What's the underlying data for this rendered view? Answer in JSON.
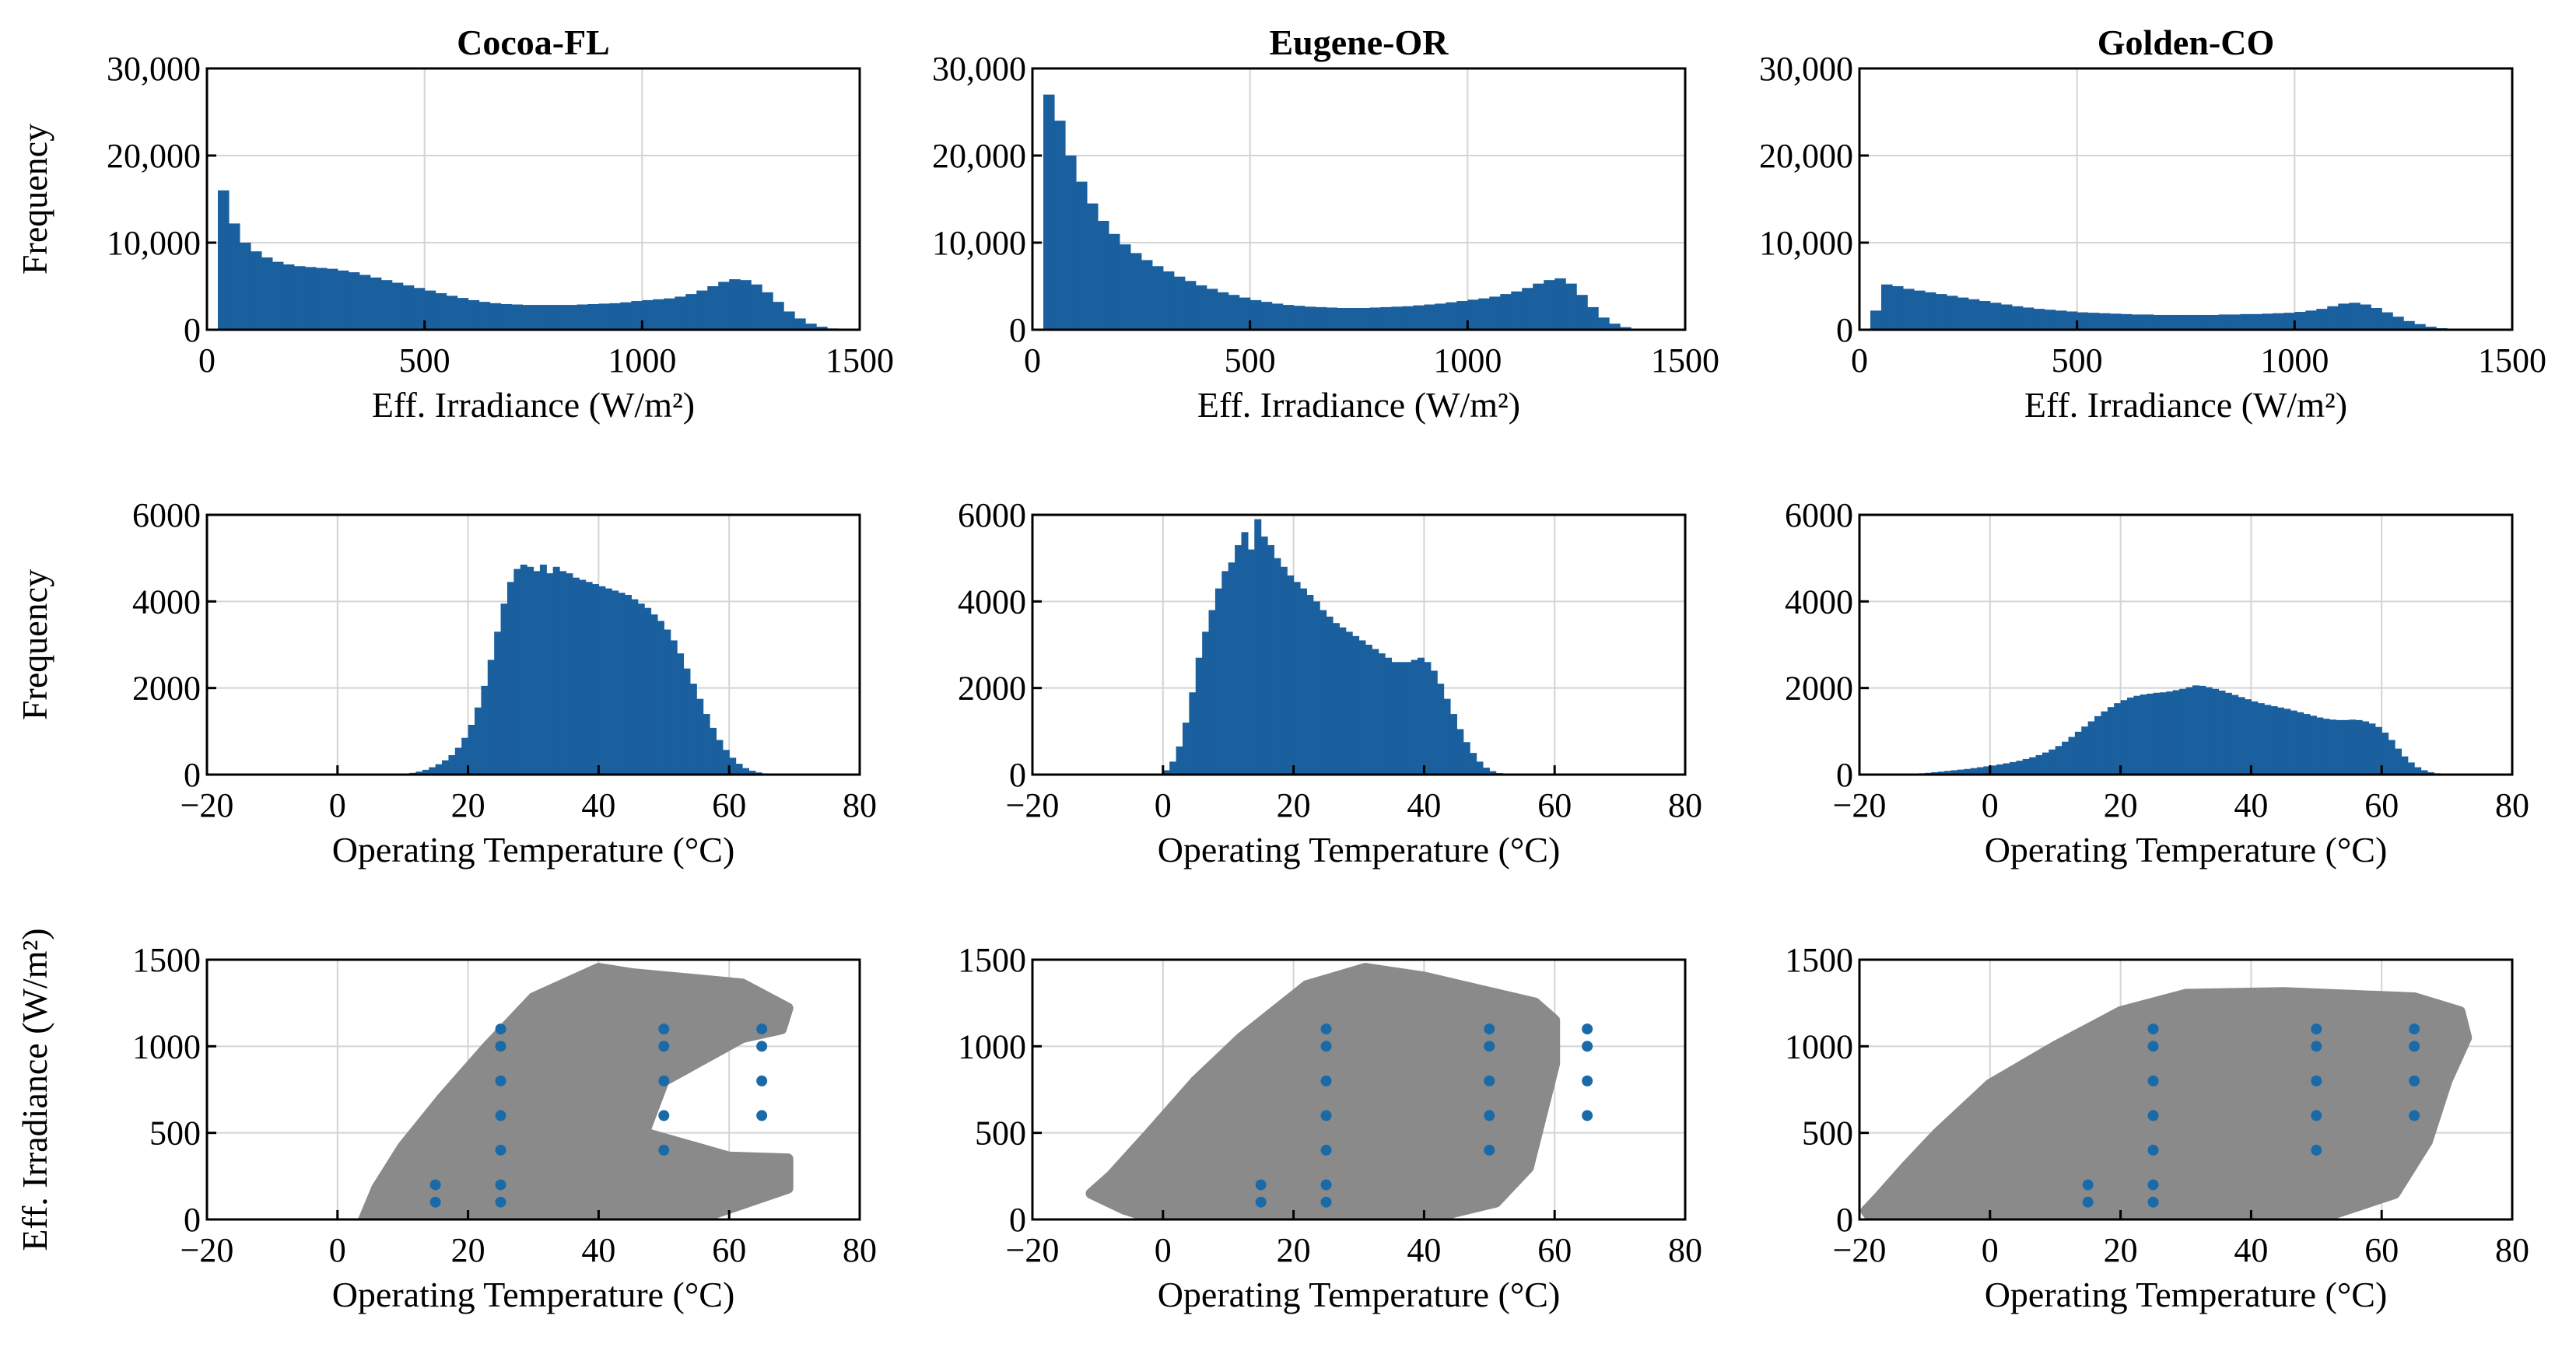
{
  "colors": {
    "bar": "#1a5f9e",
    "scatter": "#8a8a8a",
    "marker": "#1a6aa8",
    "grid": "#d4d4d4"
  },
  "chart_data": [
    {
      "type": "bar",
      "id": "cocoa-irr",
      "title": "Cocoa-FL",
      "xlabel": "Eff. Irradiance (W/m²)",
      "ylabel": "Frequency",
      "xlim": [
        0,
        1500
      ],
      "ylim": [
        0,
        30000
      ],
      "xticks": [
        0,
        500,
        1000,
        1500
      ],
      "xtick_labels": [
        "0",
        "500",
        "1000",
        "1500"
      ],
      "yticks": [
        0,
        10000,
        20000,
        30000
      ],
      "ytick_labels": [
        "0",
        "10,000",
        "20,000",
        "30,000"
      ],
      "bin_start": 0,
      "bin_width": 25,
      "values": [
        0,
        16000,
        12200,
        10000,
        9000,
        8300,
        7800,
        7500,
        7300,
        7200,
        7100,
        7000,
        6800,
        6600,
        6300,
        6000,
        5700,
        5400,
        5100,
        4800,
        4500,
        4200,
        3900,
        3650,
        3400,
        3200,
        3050,
        2950,
        2900,
        2850,
        2850,
        2850,
        2850,
        2850,
        2900,
        2950,
        3000,
        3050,
        3150,
        3300,
        3400,
        3500,
        3600,
        3800,
        4100,
        4500,
        5000,
        5500,
        5800,
        5700,
        5200,
        4300,
        3200,
        2100,
        1300,
        700,
        350,
        150,
        60,
        20
      ]
    },
    {
      "type": "bar",
      "id": "eugene-irr",
      "title": "Eugene-OR",
      "xlabel": "Eff. Irradiance (W/m²)",
      "ylabel": "",
      "xlim": [
        0,
        1500
      ],
      "ylim": [
        0,
        30000
      ],
      "xticks": [
        0,
        500,
        1000,
        1500
      ],
      "xtick_labels": [
        "0",
        "500",
        "1000",
        "1500"
      ],
      "yticks": [
        0,
        10000,
        20000,
        30000
      ],
      "ytick_labels": [
        "0",
        "10,000",
        "20,000",
        "30,000"
      ],
      "bin_start": 0,
      "bin_width": 25,
      "values": [
        0,
        27000,
        24000,
        20000,
        17000,
        14500,
        12500,
        11000,
        9800,
        8800,
        8000,
        7300,
        6700,
        6100,
        5600,
        5100,
        4700,
        4300,
        4000,
        3700,
        3400,
        3200,
        3000,
        2850,
        2750,
        2650,
        2600,
        2550,
        2500,
        2500,
        2500,
        2550,
        2600,
        2650,
        2700,
        2800,
        2900,
        3000,
        3150,
        3300,
        3450,
        3600,
        3800,
        4100,
        4400,
        4800,
        5300,
        5700,
        5900,
        5300,
        4000,
        2600,
        1400,
        700,
        300,
        120,
        50,
        20,
        10,
        5
      ]
    },
    {
      "type": "bar",
      "id": "golden-irr",
      "title": "Golden-CO",
      "xlabel": "Eff. Irradiance (W/m²)",
      "ylabel": "",
      "xlim": [
        0,
        1500
      ],
      "ylim": [
        0,
        30000
      ],
      "xticks": [
        0,
        500,
        1000,
        1500
      ],
      "xtick_labels": [
        "0",
        "500",
        "1000",
        "1500"
      ],
      "yticks": [
        0,
        10000,
        20000,
        30000
      ],
      "ytick_labels": [
        "0",
        "10,000",
        "20,000",
        "30,000"
      ],
      "bin_start": 0,
      "bin_width": 25,
      "values": [
        0,
        2200,
        5200,
        5000,
        4700,
        4500,
        4300,
        4100,
        3900,
        3700,
        3500,
        3300,
        3100,
        2900,
        2700,
        2550,
        2400,
        2300,
        2200,
        2100,
        2000,
        1950,
        1900,
        1850,
        1800,
        1750,
        1750,
        1700,
        1700,
        1700,
        1700,
        1700,
        1700,
        1750,
        1750,
        1800,
        1800,
        1850,
        1900,
        1950,
        2050,
        2200,
        2400,
        2700,
        3000,
        3100,
        2900,
        2500,
        2000,
        1500,
        1000,
        650,
        350,
        180,
        90,
        40,
        20,
        10,
        5,
        0
      ]
    },
    {
      "type": "bar",
      "id": "cocoa-temp",
      "title": "",
      "xlabel": "Operating Temperature (°C)",
      "ylabel": "Frequency",
      "xlim": [
        -20,
        80
      ],
      "ylim": [
        0,
        6000
      ],
      "xticks": [
        -20,
        0,
        20,
        40,
        60,
        80
      ],
      "xtick_labels": [
        "−20",
        "0",
        "20",
        "40",
        "60",
        "80"
      ],
      "yticks": [
        0,
        2000,
        4000,
        6000
      ],
      "ytick_labels": [
        "0",
        "2000",
        "4000",
        "6000"
      ],
      "bin_start": -20,
      "bin_width": 1,
      "values": [
        0,
        0,
        0,
        0,
        0,
        0,
        0,
        0,
        0,
        0,
        0,
        0,
        0,
        0,
        0,
        0,
        0,
        0,
        0,
        0,
        0,
        0,
        0,
        0,
        0,
        0,
        0,
        0,
        5,
        10,
        20,
        40,
        70,
        110,
        170,
        240,
        330,
        450,
        620,
        850,
        1150,
        1550,
        2050,
        2650,
        3300,
        3950,
        4450,
        4750,
        4850,
        4800,
        4700,
        4850,
        4650,
        4800,
        4700,
        4650,
        4550,
        4500,
        4450,
        4400,
        4350,
        4300,
        4250,
        4200,
        4150,
        4050,
        3950,
        3850,
        3700,
        3550,
        3350,
        3100,
        2800,
        2450,
        2100,
        1750,
        1400,
        1080,
        800,
        570,
        390,
        250,
        150,
        90,
        50,
        28,
        15,
        8,
        4,
        2,
        1,
        0,
        0,
        0,
        0,
        0,
        0,
        0,
        0,
        0
      ]
    },
    {
      "type": "bar",
      "id": "eugene-temp",
      "title": "",
      "xlabel": "Operating Temperature (°C)",
      "ylabel": "",
      "xlim": [
        -20,
        80
      ],
      "ylim": [
        0,
        6000
      ],
      "xticks": [
        -20,
        0,
        20,
        40,
        60,
        80
      ],
      "xtick_labels": [
        "−20",
        "0",
        "20",
        "40",
        "60",
        "80"
      ],
      "yticks": [
        0,
        2000,
        4000,
        6000
      ],
      "ytick_labels": [
        "0",
        "2000",
        "4000",
        "6000"
      ],
      "bin_start": -20,
      "bin_width": 1,
      "values": [
        0,
        0,
        0,
        0,
        0,
        0,
        0,
        0,
        0,
        0,
        0,
        0,
        0,
        0,
        0,
        0,
        0,
        0,
        5,
        20,
        100,
        300,
        650,
        1200,
        1900,
        2700,
        3300,
        3800,
        4300,
        4700,
        4900,
        5300,
        5600,
        5200,
        5900,
        5500,
        5300,
        5000,
        4800,
        4600,
        4450,
        4300,
        4150,
        4000,
        3800,
        3650,
        3500,
        3400,
        3300,
        3200,
        3100,
        3000,
        2900,
        2800,
        2700,
        2600,
        2600,
        2600,
        2650,
        2700,
        2600,
        2400,
        2100,
        1750,
        1400,
        1050,
        750,
        500,
        300,
        160,
        80,
        35,
        15,
        5,
        2,
        0,
        0,
        0,
        0,
        0,
        0,
        0,
        0,
        0,
        0,
        0,
        0,
        0,
        0,
        0,
        0,
        0,
        0,
        0,
        0,
        0,
        0,
        0,
        0,
        0
      ]
    },
    {
      "type": "bar",
      "id": "golden-temp",
      "title": "",
      "xlabel": "Operating Temperature (°C)",
      "ylabel": "",
      "xlim": [
        -20,
        80
      ],
      "ylim": [
        0,
        6000
      ],
      "xticks": [
        -20,
        0,
        20,
        40,
        60,
        80
      ],
      "xtick_labels": [
        "−20",
        "0",
        "20",
        "40",
        "60",
        "80"
      ],
      "yticks": [
        0,
        2000,
        4000,
        6000
      ],
      "ytick_labels": [
        "0",
        "2000",
        "4000",
        "6000"
      ],
      "bin_start": -20,
      "bin_width": 1,
      "values": [
        0,
        0,
        0,
        0,
        0,
        0,
        0,
        10,
        20,
        30,
        40,
        55,
        70,
        85,
        100,
        115,
        130,
        150,
        170,
        190,
        210,
        235,
        260,
        290,
        320,
        360,
        400,
        450,
        510,
        580,
        660,
        760,
        870,
        990,
        1110,
        1230,
        1350,
        1460,
        1560,
        1650,
        1720,
        1780,
        1820,
        1850,
        1870,
        1890,
        1900,
        1920,
        1950,
        1980,
        2020,
        2060,
        2050,
        2020,
        1980,
        1940,
        1890,
        1840,
        1790,
        1740,
        1690,
        1650,
        1610,
        1580,
        1550,
        1520,
        1480,
        1440,
        1400,
        1360,
        1320,
        1290,
        1270,
        1260,
        1260,
        1270,
        1260,
        1230,
        1180,
        1100,
        970,
        800,
        600,
        420,
        280,
        170,
        100,
        55,
        30,
        15,
        8,
        4,
        2,
        1,
        0,
        0,
        0,
        0,
        0,
        0,
        0
      ]
    },
    {
      "type": "scatter",
      "id": "cocoa-scatter",
      "title": "",
      "xlabel": "Operating Temperature (°C)",
      "ylabel": "Eff. Irradiance (W/m²)",
      "xlim": [
        -20,
        80
      ],
      "ylim": [
        0,
        1500
      ],
      "xticks": [
        -20,
        0,
        20,
        40,
        60,
        80
      ],
      "xtick_labels": [
        "−20",
        "0",
        "20",
        "40",
        "60",
        "80"
      ],
      "yticks": [
        0,
        500,
        1000,
        1500
      ],
      "ytick_labels": [
        "0",
        "500",
        "1000",
        "1500"
      ],
      "cloud": [
        [
          4,
          0
        ],
        [
          24,
          0
        ],
        [
          40,
          0
        ],
        [
          55,
          0
        ],
        [
          69,
          180
        ],
        [
          69,
          350
        ],
        [
          60,
          360
        ],
        [
          47,
          500
        ],
        [
          50,
          800
        ],
        [
          62,
          1050
        ],
        [
          68,
          1100
        ],
        [
          69,
          1220
        ],
        [
          62,
          1360
        ],
        [
          45,
          1420
        ],
        [
          40,
          1450
        ],
        [
          30,
          1280
        ],
        [
          23,
          1000
        ],
        [
          16,
          700
        ],
        [
          10,
          420
        ],
        [
          6,
          180
        ]
      ],
      "markers": [
        [
          15,
          100
        ],
        [
          15,
          200
        ],
        [
          25,
          100
        ],
        [
          25,
          200
        ],
        [
          25,
          400
        ],
        [
          25,
          600
        ],
        [
          25,
          800
        ],
        [
          25,
          1000
        ],
        [
          25,
          1100
        ],
        [
          50,
          400
        ],
        [
          50,
          600
        ],
        [
          50,
          800
        ],
        [
          50,
          1000
        ],
        [
          50,
          1100
        ],
        [
          65,
          600
        ],
        [
          65,
          800
        ],
        [
          65,
          1000
        ],
        [
          65,
          1100
        ]
      ]
    },
    {
      "type": "scatter",
      "id": "eugene-scatter",
      "title": "",
      "xlabel": "Operating Temperature (°C)",
      "ylabel": "",
      "xlim": [
        -20,
        80
      ],
      "ylim": [
        0,
        1500
      ],
      "xticks": [
        -20,
        0,
        20,
        40,
        60,
        80
      ],
      "xtick_labels": [
        "−20",
        "0",
        "20",
        "40",
        "60",
        "80"
      ],
      "yticks": [
        0,
        500,
        1000,
        1500
      ],
      "ytick_labels": [
        "0",
        "500",
        "1000",
        "1500"
      ],
      "cloud": [
        [
          -1,
          0
        ],
        [
          25,
          0
        ],
        [
          40,
          0
        ],
        [
          51,
          100
        ],
        [
          56,
          300
        ],
        [
          58,
          600
        ],
        [
          60,
          900
        ],
        [
          60,
          1150
        ],
        [
          57,
          1250
        ],
        [
          40,
          1400
        ],
        [
          31,
          1450
        ],
        [
          22,
          1350
        ],
        [
          12,
          1050
        ],
        [
          5,
          800
        ],
        [
          -2,
          500
        ],
        [
          -8,
          250
        ],
        [
          -11,
          150
        ],
        [
          -6,
          60
        ]
      ],
      "markers": [
        [
          15,
          100
        ],
        [
          15,
          200
        ],
        [
          25,
          100
        ],
        [
          25,
          200
        ],
        [
          25,
          400
        ],
        [
          25,
          600
        ],
        [
          25,
          800
        ],
        [
          25,
          1000
        ],
        [
          25,
          1100
        ],
        [
          50,
          400
        ],
        [
          50,
          600
        ],
        [
          50,
          800
        ],
        [
          50,
          1000
        ],
        [
          50,
          1100
        ],
        [
          65,
          600
        ],
        [
          65,
          800
        ],
        [
          65,
          1000
        ],
        [
          65,
          1100
        ]
      ]
    },
    {
      "type": "scatter",
      "id": "golden-scatter",
      "title": "",
      "xlabel": "Operating Temperature (°C)",
      "ylabel": "",
      "xlim": [
        -20,
        80
      ],
      "ylim": [
        0,
        1500
      ],
      "xticks": [
        -20,
        0,
        20,
        40,
        60,
        80
      ],
      "xtick_labels": [
        "−20",
        "0",
        "20",
        "40",
        "60",
        "80"
      ],
      "yticks": [
        0,
        500,
        1000,
        1500
      ],
      "ytick_labels": [
        "0",
        "500",
        "1000",
        "1500"
      ],
      "cloud": [
        [
          -18,
          0
        ],
        [
          30,
          0
        ],
        [
          50,
          0
        ],
        [
          62,
          150
        ],
        [
          67,
          450
        ],
        [
          70,
          800
        ],
        [
          73,
          1050
        ],
        [
          72,
          1200
        ],
        [
          65,
          1280
        ],
        [
          45,
          1310
        ],
        [
          30,
          1300
        ],
        [
          20,
          1200
        ],
        [
          10,
          1000
        ],
        [
          0,
          780
        ],
        [
          -8,
          500
        ],
        [
          -13,
          300
        ],
        [
          -17,
          130
        ],
        [
          -19,
          50
        ]
      ],
      "markers": [
        [
          15,
          100
        ],
        [
          15,
          200
        ],
        [
          25,
          100
        ],
        [
          25,
          200
        ],
        [
          25,
          400
        ],
        [
          25,
          600
        ],
        [
          25,
          800
        ],
        [
          25,
          1000
        ],
        [
          25,
          1100
        ],
        [
          50,
          400
        ],
        [
          50,
          600
        ],
        [
          50,
          800
        ],
        [
          50,
          1000
        ],
        [
          50,
          1100
        ],
        [
          65,
          600
        ],
        [
          65,
          800
        ],
        [
          65,
          1000
        ],
        [
          65,
          1100
        ]
      ]
    }
  ]
}
